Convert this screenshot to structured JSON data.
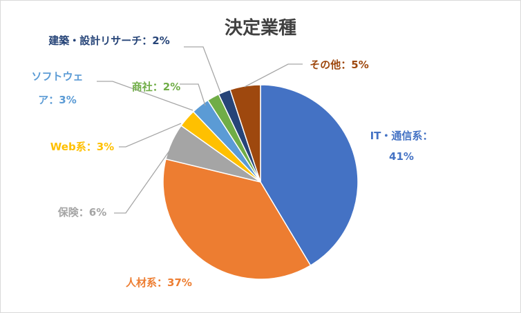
{
  "chart_data": {
    "type": "pie",
    "title": "決定業種",
    "slices": [
      {
        "label": "IT・通信系",
        "value": 41,
        "display": "41%",
        "color": "#4472c4"
      },
      {
        "label": "人材系",
        "value": 37,
        "display": "37%",
        "color": "#ed7d31"
      },
      {
        "label": "保険",
        "value": 6,
        "display": "6%",
        "color": "#a5a5a5"
      },
      {
        "label": "Web系",
        "value": 3,
        "display": "3%",
        "color": "#ffc000"
      },
      {
        "label": "ソフトウェア",
        "value": 3,
        "display": "3%",
        "color": "#5b9bd5"
      },
      {
        "label": "商社",
        "value": 2,
        "display": "2%",
        "color": "#70ad47"
      },
      {
        "label": "建築・設計リサーチ",
        "value": 2,
        "display": "2%",
        "color": "#264478"
      },
      {
        "label": "その他",
        "value": 5,
        "display": "5%",
        "color": "#9e480e"
      }
    ],
    "labels": {
      "it": [
        "IT・通信系：",
        "41%"
      ],
      "jinzai": "人材系：37%",
      "hoken": "保険：6%",
      "web": "Web系：3%",
      "software": [
        "ソフトウェ",
        "ア：3%"
      ],
      "shosha": "商社：2%",
      "kenchiku": "建築・設計リサーチ：2%",
      "other": "その他：5%"
    }
  }
}
